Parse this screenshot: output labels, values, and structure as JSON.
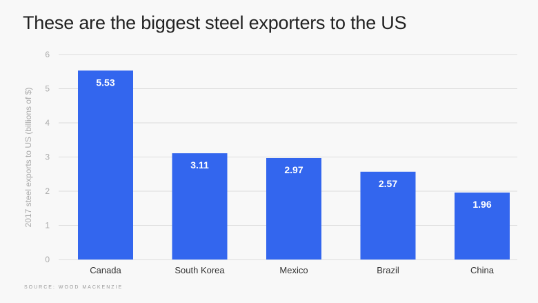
{
  "chart_data": {
    "type": "bar",
    "title": "These are the biggest steel exporters to the US",
    "ylabel": "2017 steel exports to US (billions of $)",
    "xlabel": "",
    "categories": [
      "Canada",
      "South Korea",
      "Mexico",
      "Brazil",
      "China"
    ],
    "values": [
      5.53,
      3.11,
      2.97,
      2.57,
      1.96
    ],
    "data_labels": [
      "5.53",
      "3.11",
      "2.97",
      "2.57",
      "1.96"
    ],
    "ylim": [
      0,
      6
    ],
    "yticks": [
      0,
      1,
      2,
      3,
      4,
      5,
      6
    ],
    "grid": true,
    "source": "SOURCE: WOOD MACKENZIE",
    "colors": {
      "bar": "#3366ee",
      "label": "#ffffff",
      "grid": "#dddddd",
      "tick": "#aaaaaa"
    }
  }
}
